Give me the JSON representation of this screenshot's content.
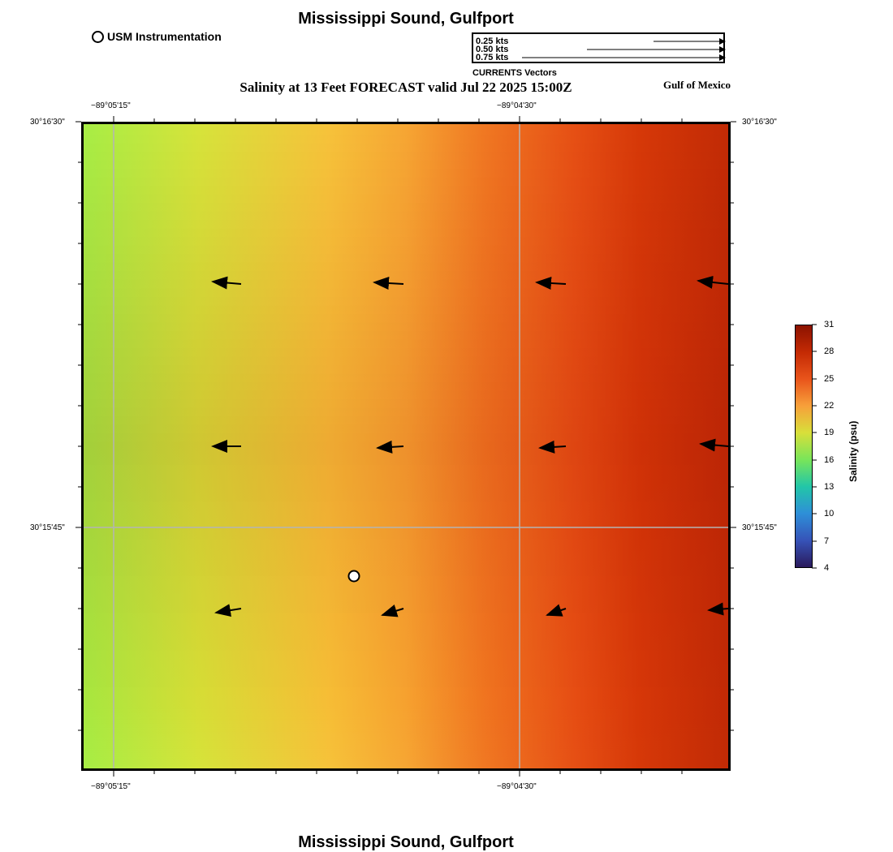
{
  "title": "Mississippi Sound, Gulfport",
  "subtitle": "Salinity at 13 Feet FORECAST valid Jul 22 2025 15:00Z",
  "region_label": "Gulf of Mexico",
  "legend": {
    "instrumentation_label": "USM Instrumentation",
    "vector_scale": [
      "0.25 kts",
      "0.50 kts",
      "0.75 kts"
    ],
    "vector_caption": "CURRENTS Vectors"
  },
  "axes": {
    "top_lon_labels": [
      "−89°05'15\"",
      "−89°04'30\""
    ],
    "bottom_lon_labels": [
      "−89°05'15\"",
      "−89°04'30\""
    ],
    "left_lat_labels": [
      "30°16'30\"",
      "30°15'45\""
    ],
    "right_lat_labels": [
      "30°16'30\"",
      "30°15'45\""
    ]
  },
  "colorbar": {
    "title": "Salinity (psu)",
    "ticks": [
      "31",
      "28",
      "25",
      "22",
      "19",
      "16",
      "13",
      "10",
      "7",
      "4"
    ],
    "colors": [
      "#8b1200",
      "#c42a04",
      "#e9541b",
      "#f7a03a",
      "#d8df3a",
      "#78e55a",
      "#22c6a8",
      "#2e8fd8",
      "#3653b8",
      "#2a1a5c"
    ]
  },
  "markers": {
    "usm_station": "USM station"
  }
}
